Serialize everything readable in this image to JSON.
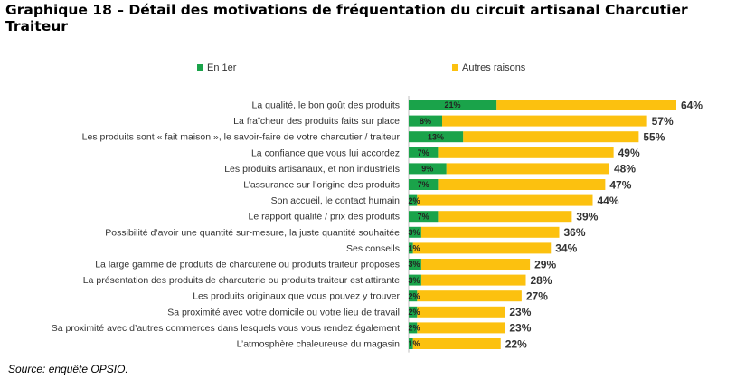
{
  "header": {
    "title": "Graphique 18 – Détail des motivations de fréquentation du circuit artisanal Charcutier Traiteur"
  },
  "footer": {
    "source": "Source: enquête OPSIO."
  },
  "chart_data": {
    "type": "bar",
    "orientation": "horizontal",
    "stacked": true,
    "legend_position": "top",
    "grid": false,
    "series": [
      {
        "name": "En 1er",
        "color": "#1aa34a"
      },
      {
        "name": "Autres raisons",
        "color": "#fcc10f"
      }
    ],
    "categories": [
      "La qualité, le bon goût des produits",
      "La fraîcheur des produits faits sur place",
      "Les produits sont « fait maison », le savoir-faire de votre charcutier / traiteur",
      "La confiance que vous lui accordez",
      "Les produits artisanaux, et non industriels",
      "L’assurance sur l’origine des produits",
      "Son accueil, le contact humain",
      "Le rapport qualité / prix des produits",
      "Possibilité d’avoir une quantité sur-mesure, la juste quantité souhaitée",
      "Ses conseils",
      "La large gamme de produits de charcuterie ou produits traiteur proposés",
      "La présentation des produits de charcuterie ou produits traiteur est attirante",
      "Les produits originaux que vous pouvez y trouver",
      "Sa proximité avec votre domicile ou votre lieu de travail",
      "Sa proximité avec d’autres commerces dans lesquels vous vous rendez également",
      "L’atmosphère chaleureuse du magasin"
    ],
    "first_values": [
      21,
      8,
      13,
      7,
      9,
      7,
      2,
      7,
      3,
      1,
      3,
      3,
      2,
      2,
      2,
      1
    ],
    "first_labels": [
      "21%",
      "8%",
      "13%",
      "7%",
      "9%",
      "7%",
      "2%",
      "7%",
      "3%",
      "1%",
      "3%",
      "3%",
      "2%",
      "2%",
      "2%",
      "1%"
    ],
    "total_values": [
      64,
      57,
      55,
      49,
      48,
      47,
      44,
      39,
      36,
      34,
      29,
      28,
      27,
      23,
      23,
      22
    ],
    "total_labels": [
      "64%",
      "57%",
      "55%",
      "49%",
      "48%",
      "47%",
      "44%",
      "39%",
      "36%",
      "34%",
      "29%",
      "28%",
      "27%",
      "23%",
      "23%",
      "22%"
    ],
    "xlim": [
      0,
      64
    ]
  }
}
